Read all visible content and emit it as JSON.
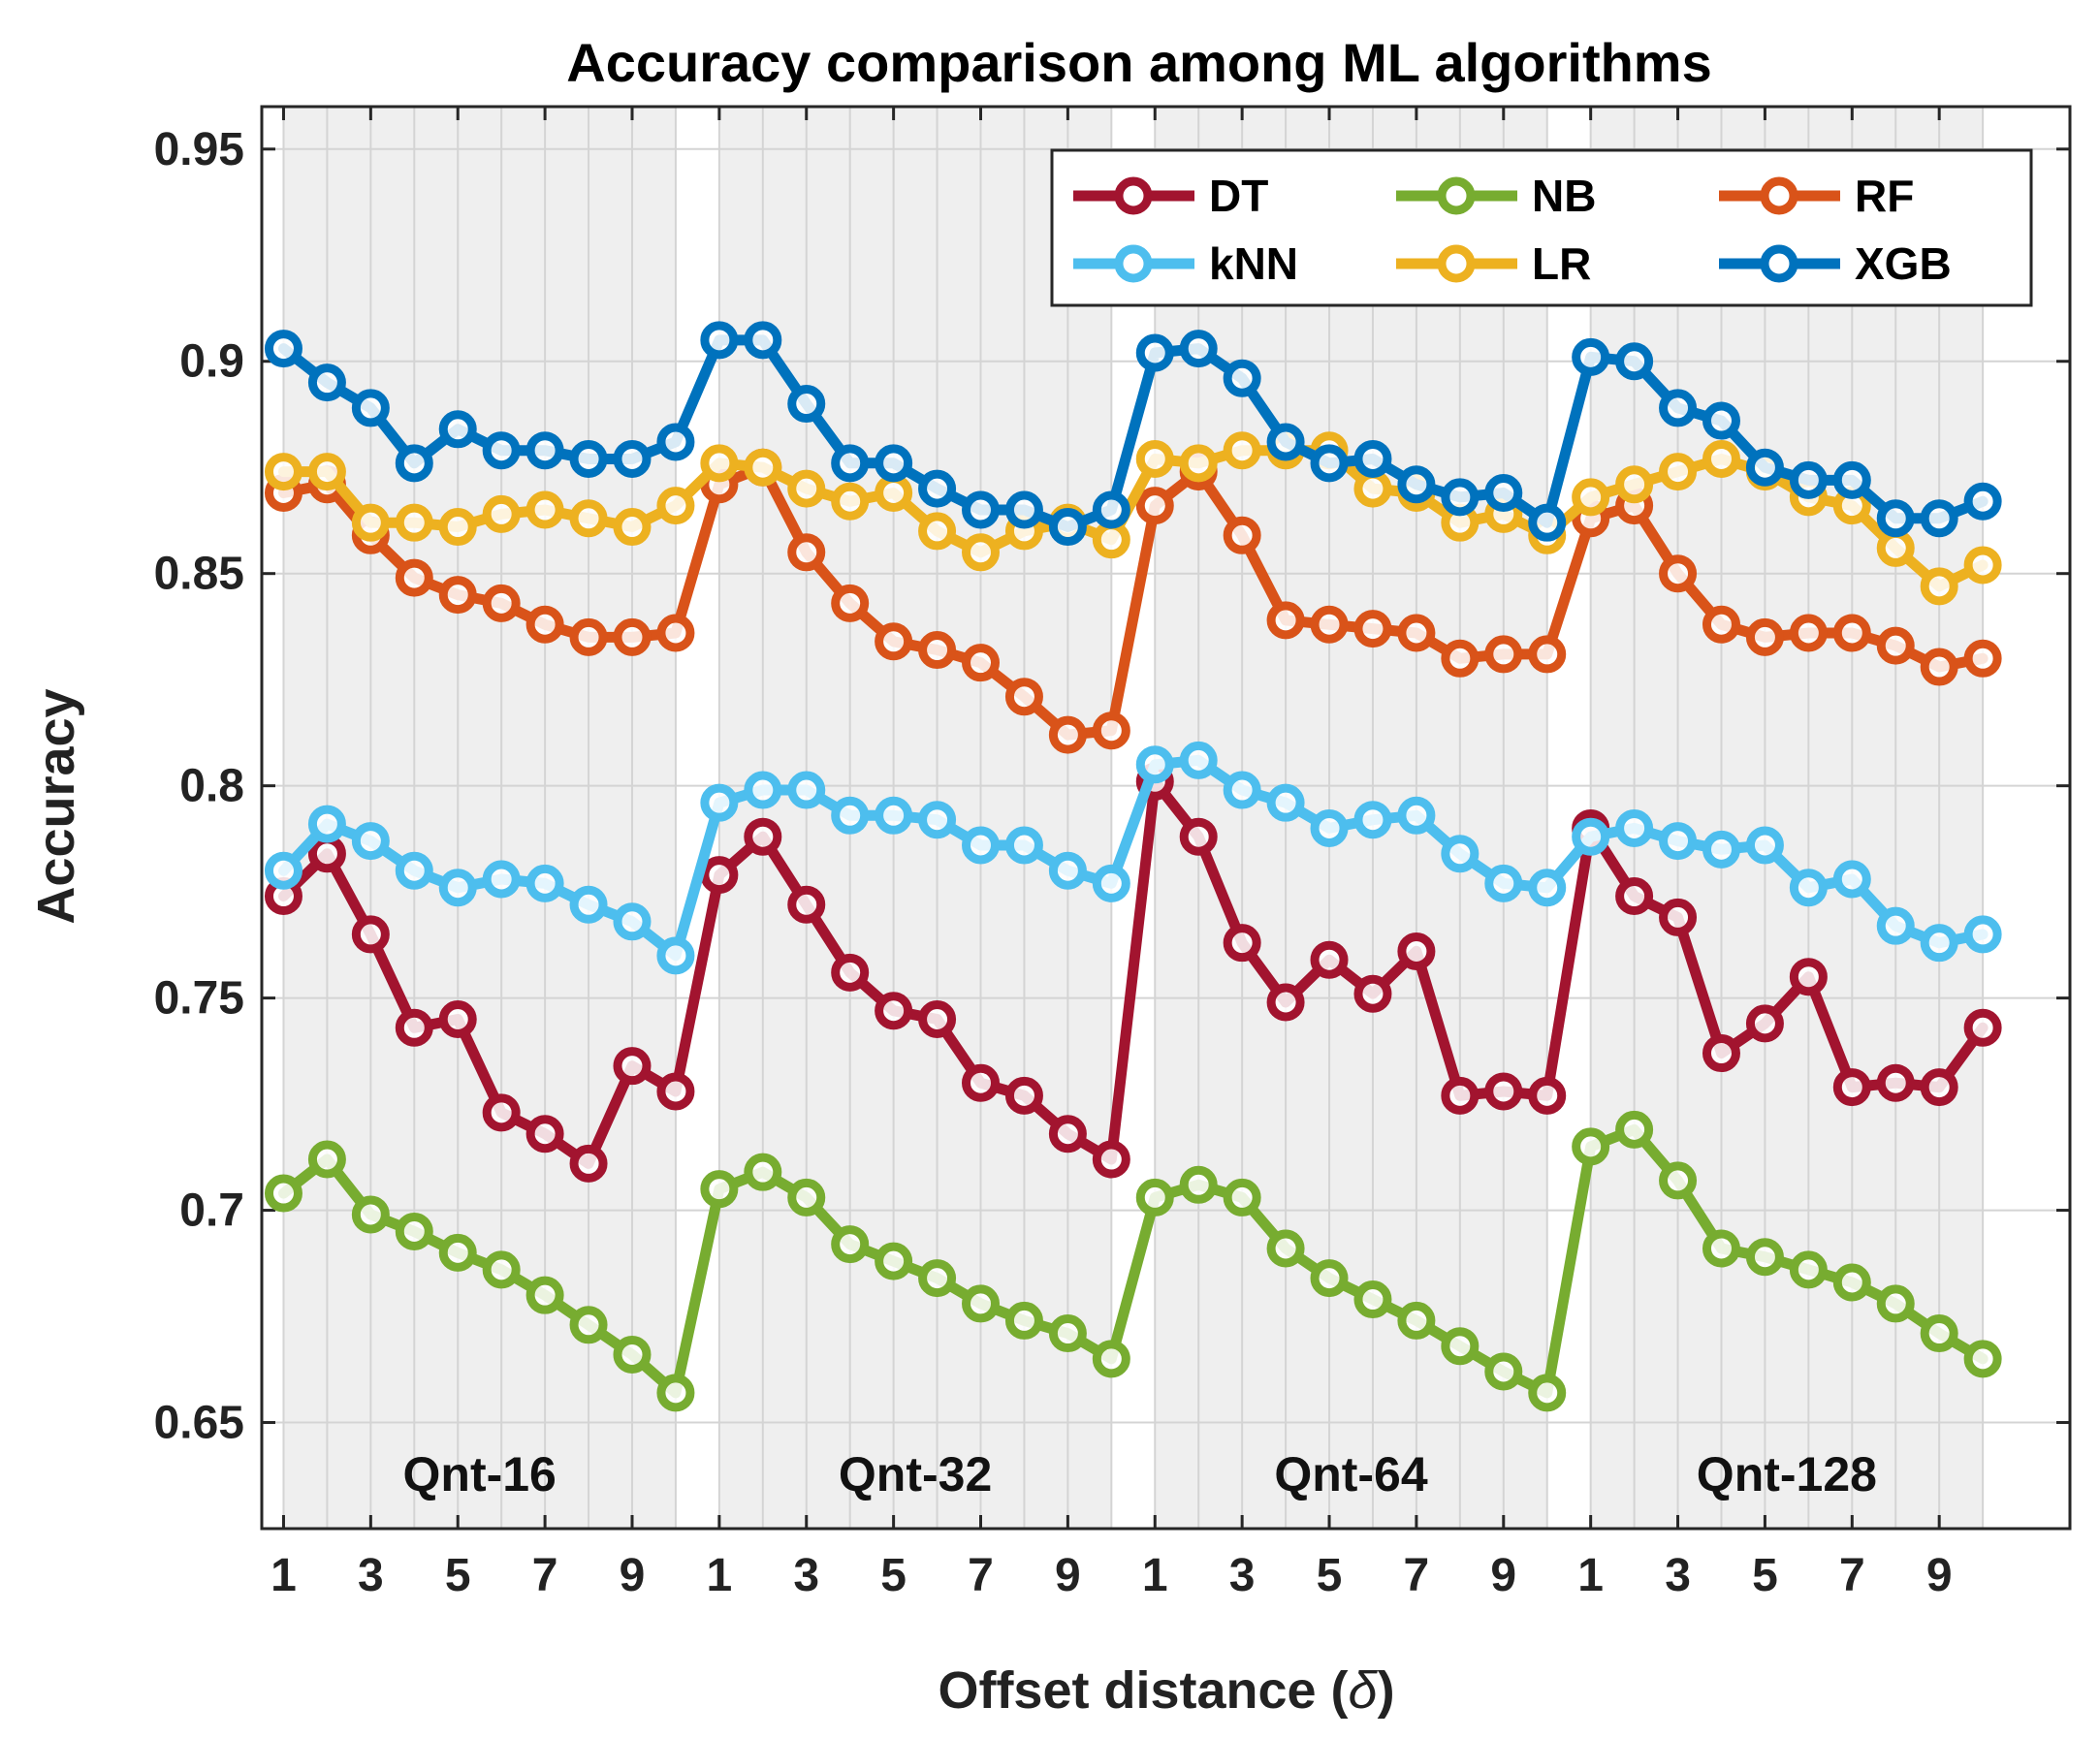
{
  "chart_data": {
    "type": "line",
    "title": "Accuracy comparison among ML algorithms",
    "xlabel": "Offset distance (",
    "xlabel_symbol": "δ",
    "xlabel_close": ")",
    "ylabel": "Accuracy",
    "ylim": [
      0.625,
      0.96
    ],
    "y_ticks": [
      0.65,
      0.7,
      0.75,
      0.8,
      0.85,
      0.9,
      0.95
    ],
    "y_tick_labels": [
      "0.65",
      "0.7",
      "0.75",
      "0.8",
      "0.85",
      "0.9",
      "0.95"
    ],
    "x_ticks": [
      "1",
      "3",
      "5",
      "7",
      "9"
    ],
    "groups": [
      "Qnt-16",
      "Qnt-32",
      "Qnt-64",
      "Qnt-128"
    ],
    "points_per_group": 10,
    "legend_position": "top-right",
    "grid": true,
    "series": [
      {
        "name": "DT",
        "color": "#A2142F",
        "values": [
          0.774,
          0.784,
          0.765,
          0.743,
          0.745,
          0.723,
          0.718,
          0.711,
          0.734,
          0.728,
          0.779,
          0.788,
          0.772,
          0.756,
          0.747,
          0.745,
          0.73,
          0.727,
          0.718,
          0.712,
          0.801,
          0.788,
          0.763,
          0.749,
          0.759,
          0.751,
          0.761,
          0.727,
          0.728,
          0.727,
          0.79,
          0.774,
          0.769,
          0.737,
          0.744,
          0.755,
          0.729,
          0.73,
          0.729,
          0.743
        ]
      },
      {
        "name": "NB",
        "color": "#77AC30",
        "values": [
          0.704,
          0.712,
          0.699,
          0.695,
          0.69,
          0.686,
          0.68,
          0.673,
          0.666,
          0.657,
          0.705,
          0.709,
          0.703,
          0.692,
          0.688,
          0.684,
          0.678,
          0.674,
          0.671,
          0.665,
          0.703,
          0.706,
          0.703,
          0.691,
          0.684,
          0.679,
          0.674,
          0.668,
          0.662,
          0.657,
          0.715,
          0.719,
          0.707,
          0.691,
          0.689,
          0.686,
          0.683,
          0.678,
          0.671,
          0.665
        ]
      },
      {
        "name": "RF",
        "color": "#D95319",
        "values": [
          0.869,
          0.871,
          0.859,
          0.849,
          0.845,
          0.843,
          0.838,
          0.835,
          0.835,
          0.836,
          0.871,
          0.875,
          0.855,
          0.843,
          0.834,
          0.832,
          0.829,
          0.821,
          0.812,
          0.813,
          0.866,
          0.874,
          0.859,
          0.839,
          0.838,
          0.837,
          0.836,
          0.83,
          0.831,
          0.831,
          0.863,
          0.866,
          0.85,
          0.838,
          0.835,
          0.836,
          0.836,
          0.833,
          0.828,
          0.83
        ]
      },
      {
        "name": "kNN",
        "color": "#4DBEEE",
        "values": [
          0.78,
          0.791,
          0.787,
          0.78,
          0.776,
          0.778,
          0.777,
          0.772,
          0.768,
          0.76,
          0.796,
          0.799,
          0.799,
          0.793,
          0.793,
          0.792,
          0.786,
          0.786,
          0.78,
          0.777,
          0.805,
          0.806,
          0.799,
          0.796,
          0.79,
          0.792,
          0.793,
          0.784,
          0.777,
          0.776,
          0.788,
          0.79,
          0.787,
          0.785,
          0.786,
          0.776,
          0.778,
          0.767,
          0.763,
          0.765
        ]
      },
      {
        "name": "LR",
        "color": "#EDB120",
        "values": [
          0.874,
          0.874,
          0.862,
          0.862,
          0.861,
          0.864,
          0.865,
          0.863,
          0.861,
          0.866,
          0.876,
          0.875,
          0.87,
          0.867,
          0.869,
          0.86,
          0.855,
          0.86,
          0.862,
          0.858,
          0.877,
          0.876,
          0.879,
          0.879,
          0.879,
          0.87,
          0.869,
          0.862,
          0.864,
          0.859,
          0.868,
          0.871,
          0.874,
          0.877,
          0.874,
          0.868,
          0.866,
          0.856,
          0.847,
          0.852
        ]
      },
      {
        "name": "XGB",
        "color": "#0072BD",
        "values": [
          0.903,
          0.895,
          0.889,
          0.876,
          0.884,
          0.879,
          0.879,
          0.877,
          0.877,
          0.881,
          0.905,
          0.905,
          0.89,
          0.876,
          0.876,
          0.87,
          0.865,
          0.865,
          0.861,
          0.865,
          0.902,
          0.903,
          0.896,
          0.881,
          0.876,
          0.877,
          0.871,
          0.868,
          0.869,
          0.862,
          0.901,
          0.9,
          0.889,
          0.886,
          0.875,
          0.872,
          0.872,
          0.863,
          0.863,
          0.867
        ]
      }
    ]
  }
}
